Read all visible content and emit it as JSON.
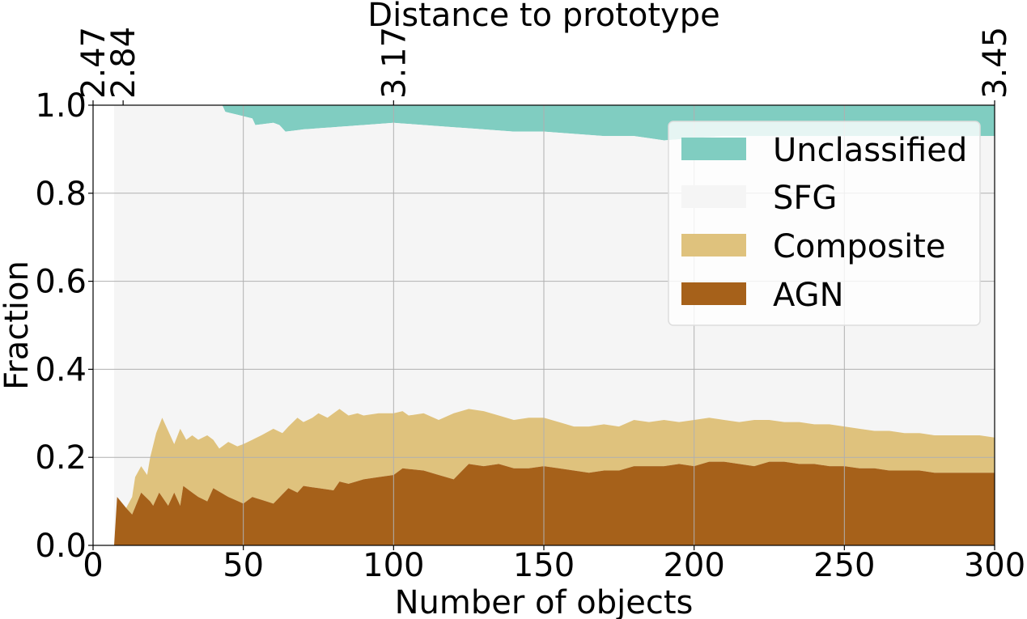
{
  "chart_data": {
    "type": "area",
    "stacked": true,
    "xlabel": "Number of objects",
    "ylabel": "Fraction",
    "top_xlabel": "Distance to prototype",
    "xlim": [
      0,
      300
    ],
    "ylim": [
      0,
      1.0
    ],
    "grid": true,
    "x_ticks": [
      0,
      50,
      100,
      150,
      200,
      250,
      300
    ],
    "x_tick_labels": [
      "0",
      "50",
      "100",
      "150",
      "200",
      "250",
      "300"
    ],
    "y_ticks": [
      0.0,
      0.2,
      0.4,
      0.6,
      0.8,
      1.0
    ],
    "y_tick_labels": [
      "0.0",
      "0.2",
      "0.4",
      "0.6",
      "0.8",
      "1.0"
    ],
    "top_ticks": [
      {
        "x": 0,
        "label": "2.47"
      },
      {
        "x": 10,
        "label": "2.84"
      },
      {
        "x": 100,
        "label": "3.17"
      },
      {
        "x": 300,
        "label": "3.45"
      }
    ],
    "legend": {
      "position": "upper-right",
      "entries": [
        {
          "label": "Unclassified",
          "color": "#80cdc1"
        },
        {
          "label": "SFG",
          "color": "#f5f5f5"
        },
        {
          "label": "Composite",
          "color": "#dfc27d"
        },
        {
          "label": "AGN",
          "color": "#a6611a"
        }
      ]
    },
    "colors": {
      "unclassified": "#80cdc1",
      "sfg": "#f5f5f5",
      "composite": "#dfc27d",
      "agn": "#a6611a"
    },
    "x_range": [
      7,
      300
    ],
    "agn_top": [
      [
        7,
        0.0
      ],
      [
        8,
        0.11
      ],
      [
        11,
        0.085
      ],
      [
        13,
        0.07
      ],
      [
        16,
        0.12
      ],
      [
        19,
        0.1
      ],
      [
        20,
        0.09
      ],
      [
        22,
        0.12
      ],
      [
        23,
        0.11
      ],
      [
        25,
        0.09
      ],
      [
        27,
        0.12
      ],
      [
        29,
        0.09
      ],
      [
        30,
        0.135
      ],
      [
        33,
        0.12
      ],
      [
        35,
        0.11
      ],
      [
        38,
        0.1
      ],
      [
        40,
        0.13
      ],
      [
        45,
        0.11
      ],
      [
        50,
        0.095
      ],
      [
        53,
        0.11
      ],
      [
        60,
        0.095
      ],
      [
        65,
        0.13
      ],
      [
        68,
        0.12
      ],
      [
        70,
        0.135
      ],
      [
        75,
        0.13
      ],
      [
        80,
        0.125
      ],
      [
        82,
        0.145
      ],
      [
        85,
        0.14
      ],
      [
        90,
        0.15
      ],
      [
        95,
        0.155
      ],
      [
        100,
        0.16
      ],
      [
        103,
        0.175
      ],
      [
        110,
        0.17
      ],
      [
        115,
        0.16
      ],
      [
        120,
        0.15
      ],
      [
        125,
        0.185
      ],
      [
        130,
        0.18
      ],
      [
        135,
        0.185
      ],
      [
        140,
        0.175
      ],
      [
        145,
        0.175
      ],
      [
        150,
        0.18
      ],
      [
        155,
        0.175
      ],
      [
        160,
        0.17
      ],
      [
        165,
        0.165
      ],
      [
        170,
        0.17
      ],
      [
        175,
        0.17
      ],
      [
        180,
        0.18
      ],
      [
        185,
        0.18
      ],
      [
        190,
        0.18
      ],
      [
        195,
        0.185
      ],
      [
        200,
        0.18
      ],
      [
        205,
        0.19
      ],
      [
        210,
        0.19
      ],
      [
        215,
        0.185
      ],
      [
        220,
        0.18
      ],
      [
        225,
        0.19
      ],
      [
        230,
        0.19
      ],
      [
        235,
        0.185
      ],
      [
        240,
        0.185
      ],
      [
        245,
        0.18
      ],
      [
        250,
        0.18
      ],
      [
        255,
        0.175
      ],
      [
        260,
        0.175
      ],
      [
        265,
        0.17
      ],
      [
        270,
        0.17
      ],
      [
        275,
        0.17
      ],
      [
        280,
        0.165
      ],
      [
        285,
        0.165
      ],
      [
        290,
        0.165
      ],
      [
        295,
        0.165
      ],
      [
        300,
        0.165
      ]
    ],
    "composite_top": [
      [
        7,
        0.0
      ],
      [
        8,
        0.11
      ],
      [
        11,
        0.085
      ],
      [
        13,
        0.11
      ],
      [
        14,
        0.155
      ],
      [
        16,
        0.18
      ],
      [
        18,
        0.16
      ],
      [
        19,
        0.2
      ],
      [
        21,
        0.255
      ],
      [
        23,
        0.29
      ],
      [
        25,
        0.26
      ],
      [
        27,
        0.23
      ],
      [
        29,
        0.265
      ],
      [
        31,
        0.24
      ],
      [
        33,
        0.25
      ],
      [
        35,
        0.24
      ],
      [
        38,
        0.25
      ],
      [
        40,
        0.24
      ],
      [
        42,
        0.22
      ],
      [
        45,
        0.235
      ],
      [
        48,
        0.225
      ],
      [
        50,
        0.23
      ],
      [
        53,
        0.24
      ],
      [
        56,
        0.25
      ],
      [
        60,
        0.265
      ],
      [
        63,
        0.255
      ],
      [
        65,
        0.27
      ],
      [
        68,
        0.29
      ],
      [
        70,
        0.28
      ],
      [
        73,
        0.29
      ],
      [
        75,
        0.3
      ],
      [
        78,
        0.29
      ],
      [
        82,
        0.31
      ],
      [
        85,
        0.295
      ],
      [
        88,
        0.3
      ],
      [
        90,
        0.295
      ],
      [
        95,
        0.3
      ],
      [
        100,
        0.3
      ],
      [
        103,
        0.305
      ],
      [
        105,
        0.295
      ],
      [
        110,
        0.3
      ],
      [
        115,
        0.285
      ],
      [
        120,
        0.3
      ],
      [
        125,
        0.31
      ],
      [
        130,
        0.305
      ],
      [
        135,
        0.295
      ],
      [
        140,
        0.285
      ],
      [
        145,
        0.29
      ],
      [
        150,
        0.29
      ],
      [
        155,
        0.28
      ],
      [
        160,
        0.27
      ],
      [
        165,
        0.27
      ],
      [
        170,
        0.275
      ],
      [
        175,
        0.27
      ],
      [
        180,
        0.285
      ],
      [
        185,
        0.28
      ],
      [
        190,
        0.285
      ],
      [
        195,
        0.28
      ],
      [
        200,
        0.285
      ],
      [
        205,
        0.29
      ],
      [
        210,
        0.285
      ],
      [
        215,
        0.28
      ],
      [
        220,
        0.285
      ],
      [
        225,
        0.285
      ],
      [
        230,
        0.28
      ],
      [
        235,
        0.28
      ],
      [
        240,
        0.275
      ],
      [
        245,
        0.275
      ],
      [
        250,
        0.27
      ],
      [
        255,
        0.265
      ],
      [
        260,
        0.26
      ],
      [
        265,
        0.26
      ],
      [
        270,
        0.255
      ],
      [
        275,
        0.255
      ],
      [
        280,
        0.25
      ],
      [
        285,
        0.25
      ],
      [
        290,
        0.25
      ],
      [
        295,
        0.25
      ],
      [
        300,
        0.245
      ]
    ],
    "sfg_top": [
      [
        7,
        1.0
      ],
      [
        43,
        1.0
      ],
      [
        44,
        0.985
      ],
      [
        50,
        0.975
      ],
      [
        53,
        0.97
      ],
      [
        54,
        0.955
      ],
      [
        60,
        0.96
      ],
      [
        62,
        0.955
      ],
      [
        64,
        0.94
      ],
      [
        70,
        0.945
      ],
      [
        80,
        0.95
      ],
      [
        90,
        0.955
      ],
      [
        100,
        0.96
      ],
      [
        110,
        0.955
      ],
      [
        120,
        0.95
      ],
      [
        130,
        0.945
      ],
      [
        140,
        0.94
      ],
      [
        150,
        0.94
      ],
      [
        160,
        0.935
      ],
      [
        170,
        0.93
      ],
      [
        180,
        0.93
      ],
      [
        185,
        0.925
      ],
      [
        190,
        0.92
      ],
      [
        200,
        0.925
      ],
      [
        210,
        0.93
      ],
      [
        220,
        0.93
      ],
      [
        230,
        0.93
      ],
      [
        240,
        0.93
      ],
      [
        250,
        0.93
      ],
      [
        260,
        0.93
      ],
      [
        270,
        0.93
      ],
      [
        280,
        0.93
      ],
      [
        290,
        0.93
      ],
      [
        300,
        0.93
      ]
    ]
  }
}
